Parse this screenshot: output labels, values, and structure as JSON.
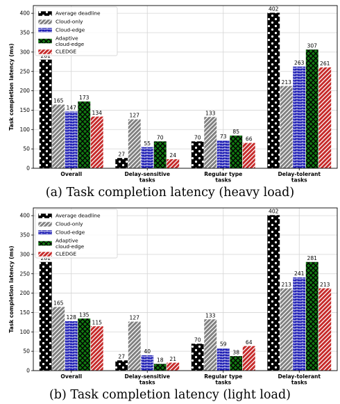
{
  "chart_data": [
    {
      "type": "bar",
      "caption": "(a) Task completion latency (heavy load)",
      "ylabel": "Task completion latency (ms)",
      "ylim": [
        0,
        420
      ],
      "yticks": [
        0,
        50,
        100,
        150,
        200,
        250,
        300,
        350,
        400
      ],
      "grid": "on",
      "legend_position": "top-left",
      "categories": [
        [
          "Overall"
        ],
        [
          "Delay-sensitive",
          "tasks"
        ],
        [
          "Regular type",
          "tasks"
        ],
        [
          "Delay-tolerant",
          "tasks"
        ]
      ],
      "series": [
        {
          "name": "Average deadline",
          "values": [
            281,
            27,
            70,
            402
          ]
        },
        {
          "name": "Cloud-only",
          "values": [
            165,
            127,
            133,
            213
          ]
        },
        {
          "name": "Cloud-edge",
          "values": [
            147,
            55,
            73,
            263
          ]
        },
        {
          "name": "Adaptive cloud-edge",
          "values": [
            173,
            70,
            85,
            307
          ]
        },
        {
          "name": "CLEDGE",
          "values": [
            134,
            24,
            66,
            261
          ]
        }
      ]
    },
    {
      "type": "bar",
      "caption": "(b) Task completion latency (light load)",
      "ylabel": "Task completion latency (ms)",
      "ylim": [
        0,
        420
      ],
      "yticks": [
        0,
        50,
        100,
        150,
        200,
        250,
        300,
        350,
        400
      ],
      "grid": "on",
      "legend_position": "top-left",
      "categories": [
        [
          "Overall"
        ],
        [
          "Delay-sensitive",
          "tasks"
        ],
        [
          "Regular type",
          "tasks"
        ],
        [
          "Delay-tolerant",
          "tasks"
        ]
      ],
      "series": [
        {
          "name": "Average deadline",
          "values": [
            281,
            27,
            70,
            402
          ]
        },
        {
          "name": "Cloud-only",
          "values": [
            165,
            127,
            133,
            213
          ]
        },
        {
          "name": "Cloud-edge",
          "values": [
            128,
            40,
            59,
            241
          ]
        },
        {
          "name": "Adaptive cloud-edge",
          "values": [
            135,
            18,
            38,
            281
          ]
        },
        {
          "name": "CLEDGE",
          "values": [
            115,
            21,
            64,
            213
          ]
        }
      ]
    }
  ],
  "legend_lines": [
    [
      "Average deadline"
    ],
    [
      "Cloud-only"
    ],
    [
      "Cloud-edge"
    ],
    [
      "Adaptive",
      "cloud-edge"
    ],
    [
      "CLEDGE"
    ]
  ],
  "series_styles": [
    {
      "fill": "#000000",
      "pattern": "dots"
    },
    {
      "fill": "#7f7f7f",
      "pattern": "hatch-gray"
    },
    {
      "fill": "#1f1fb8",
      "pattern": "hgrid-blue"
    },
    {
      "fill": "#178017",
      "pattern": "cross-green"
    },
    {
      "fill": "#c42a2a",
      "pattern": "hatch-red"
    }
  ]
}
